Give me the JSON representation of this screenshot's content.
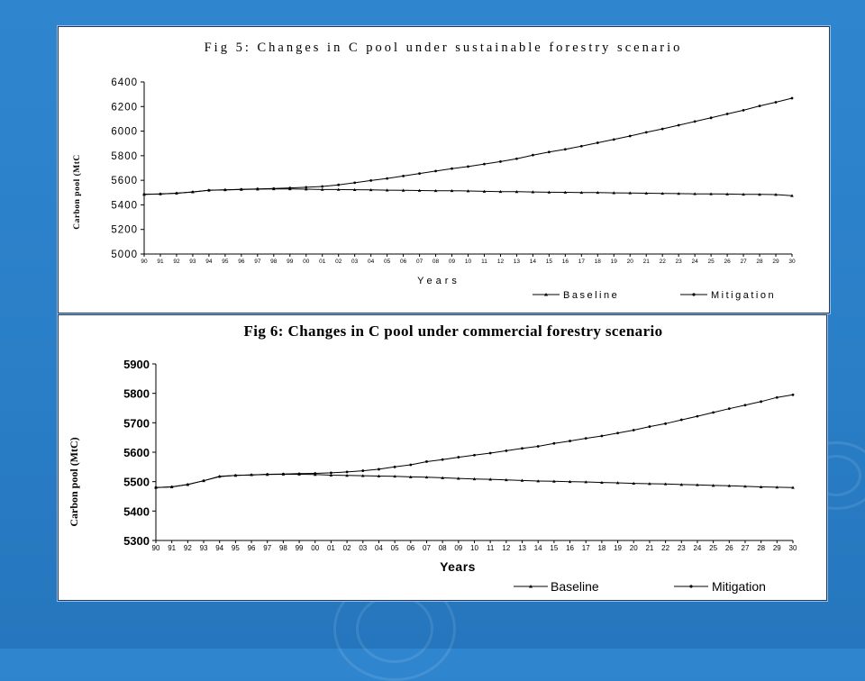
{
  "colors": {
    "background": "#2a7fc7",
    "panel": "#ffffff",
    "series": "#000000",
    "frame": "#1d3b66"
  },
  "chart_data": [
    {
      "type": "line",
      "title": "Fig 5: Changes in C pool under sustainable forestry scenario",
      "xlabel": "Years",
      "ylabel": "Carbon pool (MtC",
      "ylim": [
        5000,
        6400
      ],
      "yticks": [
        5000,
        5200,
        5400,
        5600,
        5800,
        6000,
        6200,
        6400
      ],
      "grid": false,
      "legend": "bottom",
      "categories": [
        "90",
        "91",
        "92",
        "93",
        "94",
        "95",
        "96",
        "97",
        "98",
        "99",
        "00",
        "01",
        "02",
        "03",
        "04",
        "05",
        "06",
        "07",
        "08",
        "09",
        "10",
        "11",
        "12",
        "13",
        "14",
        "15",
        "16",
        "17",
        "18",
        "19",
        "20",
        "21",
        "22",
        "23",
        "24",
        "25",
        "26",
        "27",
        "28",
        "29",
        "30"
      ],
      "series": [
        {
          "name": "Baseline",
          "marker": "triangle",
          "values": [
            5485,
            5490,
            5495,
            5505,
            5520,
            5522,
            5525,
            5528,
            5530,
            5530,
            5528,
            5525,
            5525,
            5523,
            5522,
            5520,
            5518,
            5517,
            5515,
            5515,
            5513,
            5510,
            5508,
            5507,
            5505,
            5503,
            5502,
            5500,
            5500,
            5498,
            5497,
            5495,
            5493,
            5492,
            5490,
            5489,
            5488,
            5486,
            5485,
            5484,
            5475
          ]
        },
        {
          "name": "Mitigation",
          "marker": "dot",
          "values": [
            5485,
            5488,
            5495,
            5505,
            5518,
            5522,
            5527,
            5530,
            5533,
            5538,
            5543,
            5550,
            5563,
            5580,
            5598,
            5615,
            5635,
            5655,
            5675,
            5695,
            5712,
            5732,
            5752,
            5775,
            5805,
            5830,
            5852,
            5878,
            5905,
            5932,
            5960,
            5990,
            6018,
            6048,
            6078,
            6108,
            6140,
            6170,
            6205,
            6235,
            6268
          ]
        }
      ]
    },
    {
      "type": "line",
      "title": "Fig 6: Changes in C pool under commercial forestry scenario",
      "xlabel": "Years",
      "ylabel": "Carbon pool (MtC)",
      "ylim": [
        5300,
        5900
      ],
      "yticks": [
        5300,
        5400,
        5500,
        5600,
        5700,
        5800,
        5900
      ],
      "grid": false,
      "legend": "bottom",
      "categories": [
        "90",
        "91",
        "92",
        "93",
        "94",
        "95",
        "96",
        "97",
        "98",
        "99",
        "00",
        "01",
        "02",
        "03",
        "04",
        "05",
        "06",
        "07",
        "08",
        "09",
        "10",
        "11",
        "12",
        "13",
        "14",
        "15",
        "16",
        "17",
        "18",
        "19",
        "20",
        "21",
        "22",
        "23",
        "24",
        "25",
        "26",
        "27",
        "28",
        "29",
        "30"
      ],
      "series": [
        {
          "name": "Baseline",
          "marker": "triangle",
          "values": [
            5480,
            5482,
            5490,
            5503,
            5518,
            5521,
            5523,
            5524,
            5525,
            5525,
            5524,
            5522,
            5521,
            5520,
            5519,
            5518,
            5516,
            5515,
            5513,
            5511,
            5509,
            5508,
            5506,
            5504,
            5502,
            5501,
            5500,
            5499,
            5497,
            5496,
            5494,
            5493,
            5492,
            5490,
            5489,
            5487,
            5486,
            5484,
            5482,
            5481,
            5480
          ]
        },
        {
          "name": "Mitigation",
          "marker": "dot",
          "values": [
            5480,
            5482,
            5490,
            5503,
            5517,
            5521,
            5523,
            5525,
            5526,
            5527,
            5528,
            5530,
            5533,
            5537,
            5542,
            5550,
            5557,
            5568,
            5575,
            5583,
            5590,
            5597,
            5605,
            5613,
            5620,
            5630,
            5638,
            5647,
            5655,
            5665,
            5675,
            5687,
            5697,
            5710,
            5722,
            5735,
            5748,
            5760,
            5772,
            5786,
            5795
          ]
        }
      ]
    }
  ]
}
